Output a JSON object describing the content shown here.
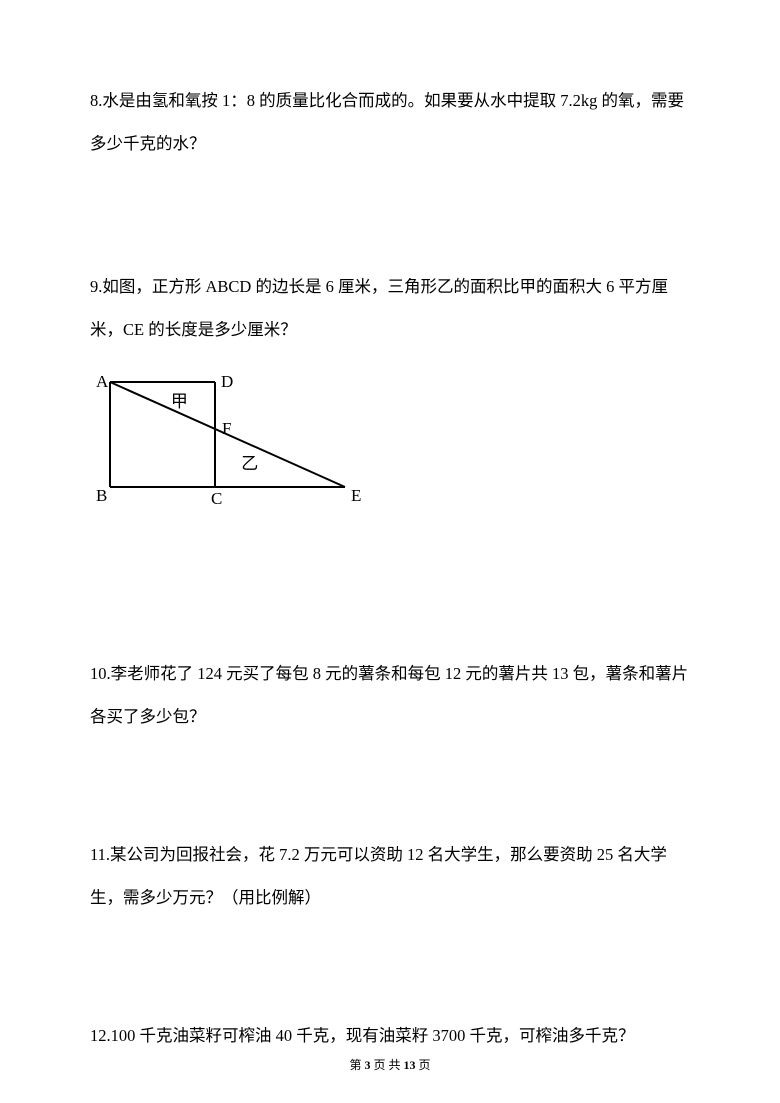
{
  "questions": {
    "q8": {
      "text": "8.水是由氢和氧按 1：8 的质量比化合而成的。如果要从水中提取 7.2kg 的氧，需要多少千克的水？"
    },
    "q9": {
      "text": "9.如图，正方形 ABCD 的边长是 6 厘米，三角形乙的面积比甲的面积大 6 平方厘米，CE 的长度是多少厘米？",
      "diagram": {
        "labels": {
          "A": "A",
          "B": "B",
          "C": "C",
          "D": "D",
          "E": "E",
          "F": "F",
          "jia": "甲",
          "yi": "乙"
        },
        "stroke_color": "#000000",
        "stroke_width": 2,
        "square_size": 105,
        "extension_length": 130,
        "font_size": 17
      }
    },
    "q10": {
      "text": "10.李老师花了 124 元买了每包 8 元的薯条和每包 12 元的薯片共 13 包，薯条和薯片各买了多少包？"
    },
    "q11": {
      "text": "11.某公司为回报社会，花 7.2 万元可以资助 12 名大学生，那么要资助 25 名大学生，需多少万元？（用比例解）"
    },
    "q12": {
      "text": "12.100 千克油菜籽可榨油 40 千克，现有油菜籽 3700 千克，可榨油多千克？"
    }
  },
  "footer": {
    "prefix": "第 ",
    "current": "3",
    "mid": " 页 共 ",
    "total": "13",
    "suffix": " 页"
  }
}
